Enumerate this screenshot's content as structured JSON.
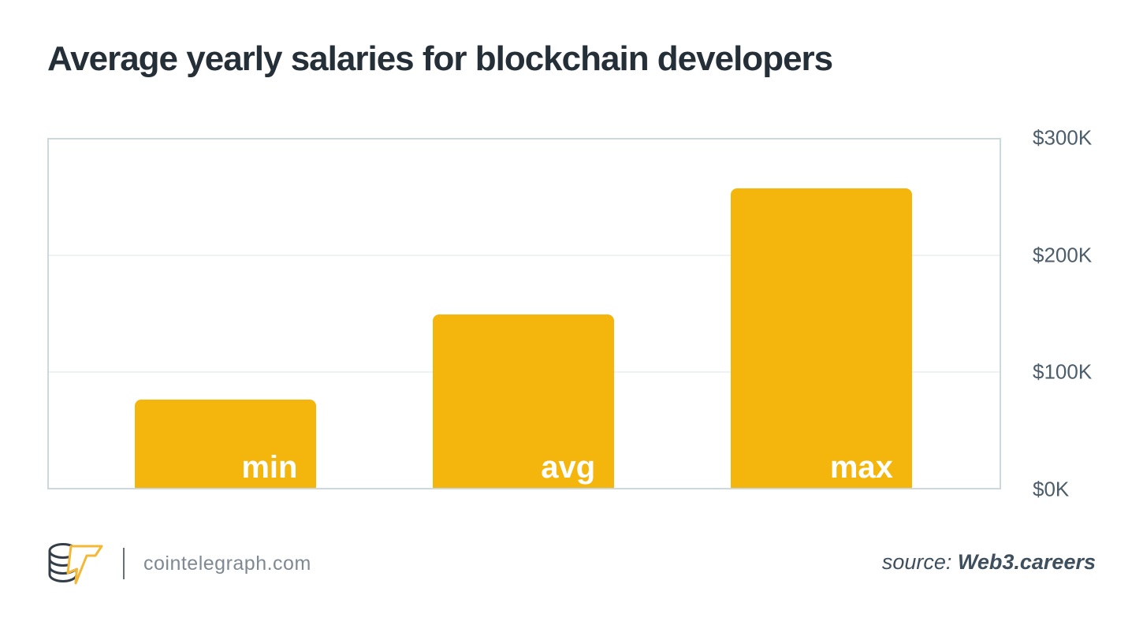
{
  "title": "Average yearly salaries for blockchain developers",
  "chart_data": {
    "type": "bar",
    "categories": [
      "min",
      "avg",
      "max"
    ],
    "values": [
      76,
      149,
      258
    ],
    "values_usd": [
      76000,
      149000,
      258000
    ],
    "value_unit": "USD thousands per year",
    "title": "Average yearly salaries for blockchain developers",
    "xlabel": "",
    "ylabel": "",
    "ylim": [
      0,
      300
    ],
    "yticks": [
      {
        "value": 0,
        "label": "$0K"
      },
      {
        "value": 100,
        "label": "$100K"
      },
      {
        "value": 200,
        "label": "$200K"
      },
      {
        "value": 300,
        "label": "$300K"
      }
    ],
    "grid": true,
    "legend": false,
    "yaxis_position": "right",
    "bar_color": "#F4B60C",
    "bar_label_color": "#FFFFFF",
    "bar_label_position": "inside-bottom-right"
  },
  "colors": {
    "title_text": "#242F38",
    "axis_text": "#4C5D6B",
    "plot_border": "#CBD9DF",
    "gridline": "#EDF2F5",
    "accent_yellow": "#F4B60C",
    "footer_text": "#7E8993",
    "source_text": "#3E4F5D"
  },
  "footer": {
    "logo": "cointelegraph-coin-bolt-logo",
    "site": "cointelegraph.com",
    "source_prefix": "source: ",
    "source_name": "Web3.careers"
  }
}
